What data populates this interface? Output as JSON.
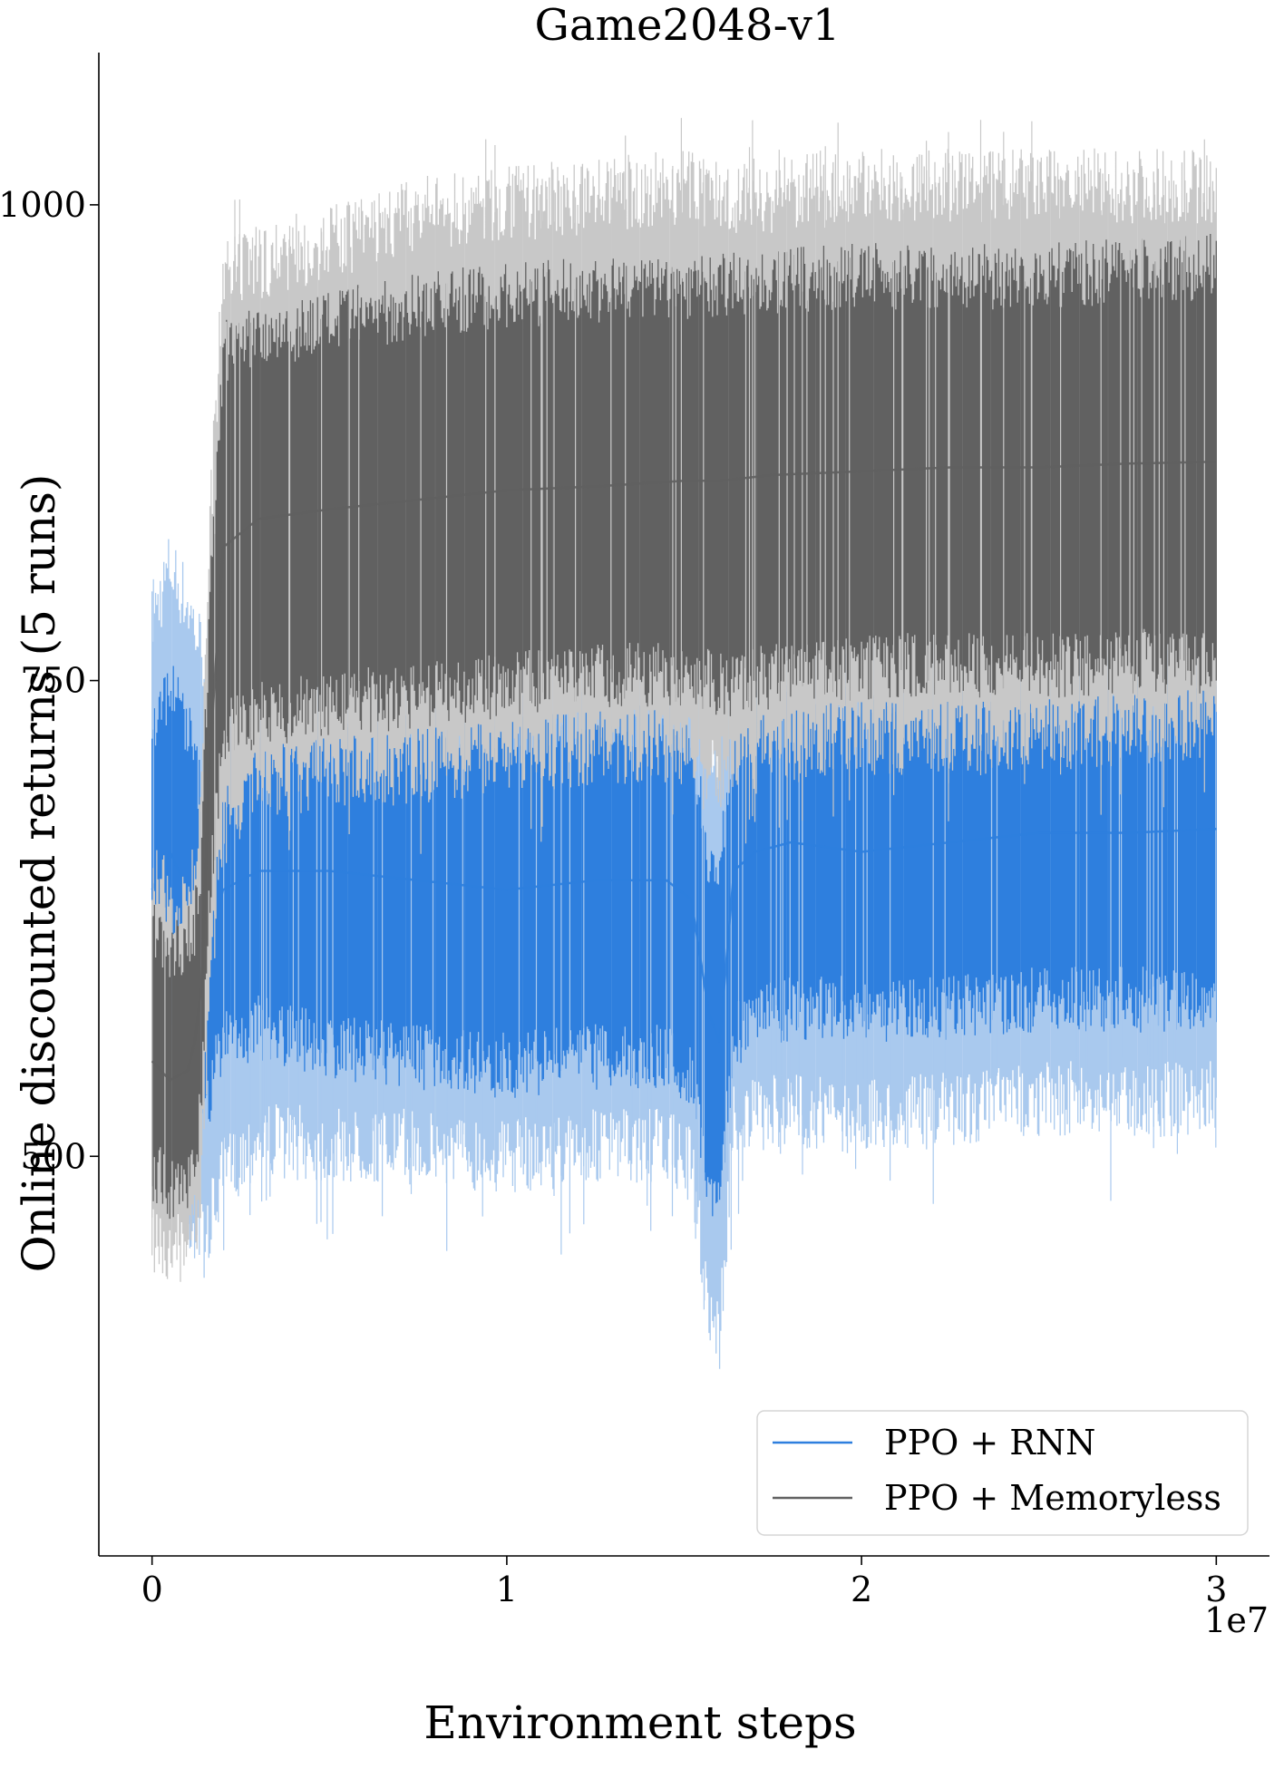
{
  "chart_data": {
    "type": "line",
    "title": "Game2048-v1",
    "xlabel": "Environment steps",
    "ylabel": "Online discounted returns (5 runs)",
    "x_offset_label": "1e7",
    "xlim": [
      -0.15,
      3.15
    ],
    "ylim": [
      290,
      1080
    ],
    "x_ticks": [
      {
        "value": 0,
        "label": "0"
      },
      {
        "value": 1,
        "label": "1"
      },
      {
        "value": 2,
        "label": "2"
      },
      {
        "value": 3,
        "label": "3"
      }
    ],
    "y_ticks": [
      {
        "value": 500,
        "label": "500"
      },
      {
        "value": 750,
        "label": "750"
      },
      {
        "value": 1000,
        "label": "1000"
      }
    ],
    "grid": false,
    "legend_position": "bottom-right",
    "series": [
      {
        "name": "PPO + RNN",
        "color": "#2e7fde",
        "band_color": "#a9c9ee",
        "x": [
          0.0,
          0.05,
          0.1,
          0.15,
          0.2,
          0.3,
          0.5,
          0.75,
          1.0,
          1.25,
          1.45,
          1.52,
          1.57,
          1.6,
          1.64,
          1.7,
          1.8,
          2.0,
          2.25,
          2.5,
          2.75,
          3.0
        ],
        "mean": [
          640,
          660,
          640,
          600,
          640,
          650,
          650,
          645,
          640,
          645,
          645,
          635,
          575,
          560,
          650,
          660,
          665,
          660,
          665,
          670,
          670,
          672
        ],
        "inner_lower": [
          575,
          590,
          570,
          540,
          580,
          585,
          575,
          570,
          565,
          570,
          570,
          560,
          505,
          495,
          580,
          590,
          595,
          595,
          595,
          600,
          600,
          600
        ],
        "inner_upper": [
          705,
          730,
          710,
          660,
          710,
          715,
          720,
          715,
          710,
          715,
          715,
          705,
          640,
          625,
          720,
          735,
          740,
          730,
          735,
          740,
          740,
          745
        ],
        "outer_lower": [
          510,
          505,
          490,
          475,
          510,
          530,
          525,
          525,
          520,
          525,
          525,
          515,
          440,
          425,
          540,
          540,
          545,
          540,
          545,
          550,
          550,
          550
        ],
        "outer_upper": [
          760,
          790,
          770,
          740,
          775,
          780,
          785,
          785,
          780,
          790,
          790,
          775,
          700,
          690,
          795,
          800,
          800,
          800,
          800,
          810,
          810,
          810
        ]
      },
      {
        "name": "PPO + Memoryless",
        "color": "#616161",
        "band_color": "#c8c8c8",
        "x": [
          0.0,
          0.05,
          0.1,
          0.12,
          0.14,
          0.16,
          0.2,
          0.3,
          0.5,
          0.75,
          1.0,
          1.25,
          1.5,
          1.6,
          1.75,
          2.0,
          2.25,
          2.5,
          2.75,
          3.0
        ],
        "mean": [
          550,
          540,
          545,
          560,
          590,
          700,
          820,
          835,
          840,
          845,
          850,
          852,
          855,
          855,
          858,
          860,
          862,
          862,
          864,
          865
        ],
        "inner_lower": [
          510,
          500,
          500,
          515,
          545,
          650,
          740,
          750,
          755,
          760,
          765,
          770,
          770,
          765,
          770,
          775,
          775,
          775,
          778,
          778
        ],
        "inner_upper": [
          600,
          590,
          595,
          605,
          640,
          760,
          905,
          915,
          920,
          930,
          935,
          938,
          940,
          940,
          942,
          945,
          945,
          945,
          948,
          950
        ],
        "outer_lower": [
          480,
          470,
          470,
          480,
          510,
          600,
          700,
          715,
          720,
          725,
          730,
          735,
          735,
          720,
          735,
          740,
          740,
          742,
          745,
          745
        ],
        "outer_upper": [
          625,
          615,
          620,
          630,
          665,
          800,
          940,
          950,
          960,
          975,
          980,
          985,
          990,
          985,
          985,
          990,
          990,
          990,
          990,
          990
        ]
      }
    ]
  }
}
